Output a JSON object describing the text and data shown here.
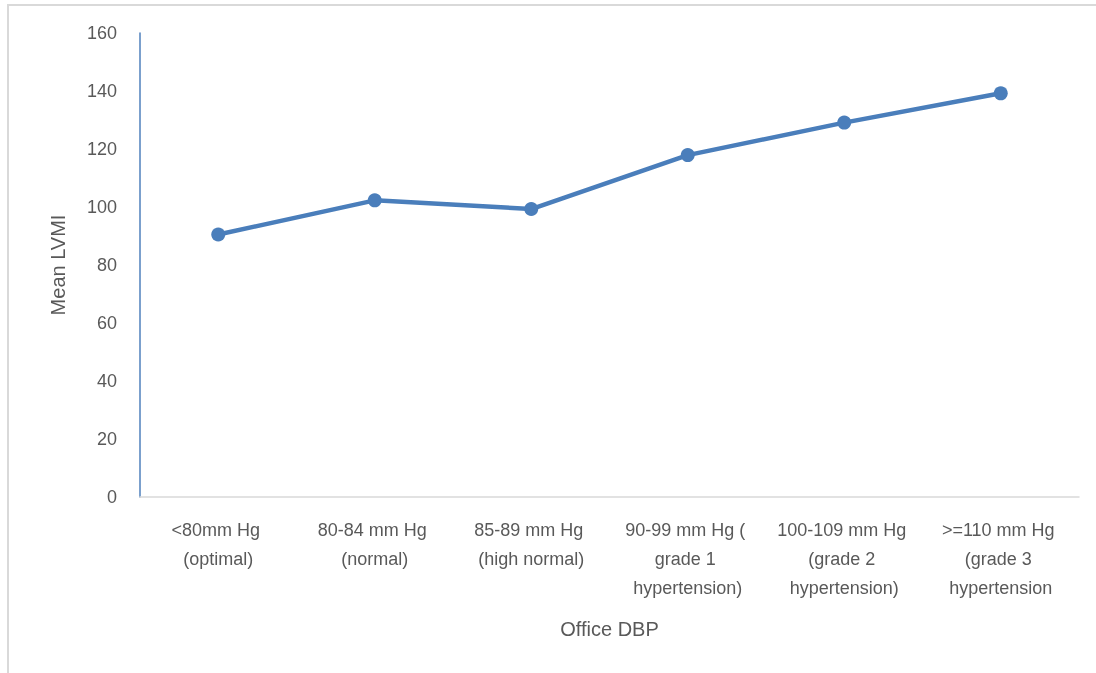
{
  "chart_data": {
    "type": "line",
    "xlabel": "Office DBP",
    "ylabel": "Mean LVMI",
    "categories": [
      "<80mm Hg (optimal)",
      "80-84 mm Hg (normal)",
      "85-89 mm Hg (high normal)",
      "90-99 mm Hg ( grade 1 hypertension)",
      "100-109 mm Hg (grade 2 hypertension)",
      ">=110 mm Hg (grade 3 hypertension"
    ],
    "values": [
      90.5,
      102.3,
      99.3,
      117.9,
      129.1,
      139.2
    ],
    "color": "#4a7ebb",
    "ylim": [
      0,
      160
    ],
    "yticks": [
      0,
      20,
      40,
      60,
      80,
      100,
      120,
      140,
      160
    ],
    "marker": "circle",
    "line_style": "solid"
  }
}
